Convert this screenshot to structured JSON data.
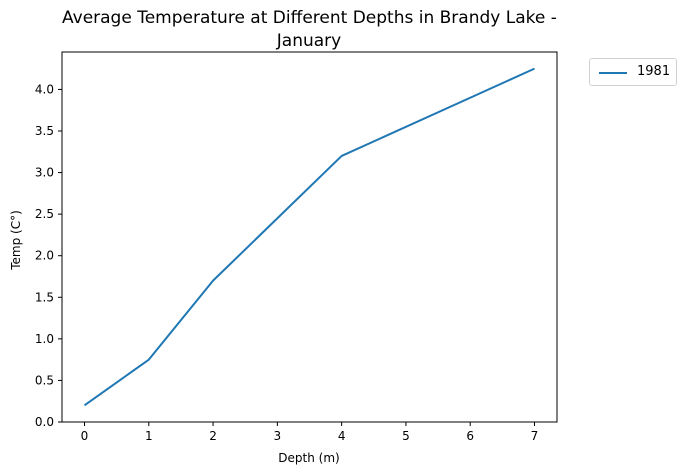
{
  "chart_data": {
    "type": "line",
    "title": "Average Temperature at Different Depths in Brandy Lake -\nJanuary",
    "title_lines": [
      "Average Temperature at Different Depths in Brandy Lake -",
      "January"
    ],
    "xlabel": "Depth (m)",
    "ylabel": "Temp (C°)",
    "x": [
      0,
      1,
      2,
      4,
      7
    ],
    "series": [
      {
        "name": "1981",
        "values": [
          0.2,
          0.75,
          1.7,
          3.2,
          4.25
        ],
        "color": "#1f77b4"
      }
    ],
    "xlim": [
      -0.35,
      7.35
    ],
    "ylim": [
      0,
      4.45
    ],
    "xticks": [
      "0",
      "1",
      "2",
      "3",
      "4",
      "5",
      "6",
      "7"
    ],
    "yticks": [
      "0.0",
      "0.5",
      "1.0",
      "1.5",
      "2.0",
      "2.5",
      "3.0",
      "3.5",
      "4.0"
    ],
    "grid": false,
    "legend_position": "outside-top-right"
  }
}
